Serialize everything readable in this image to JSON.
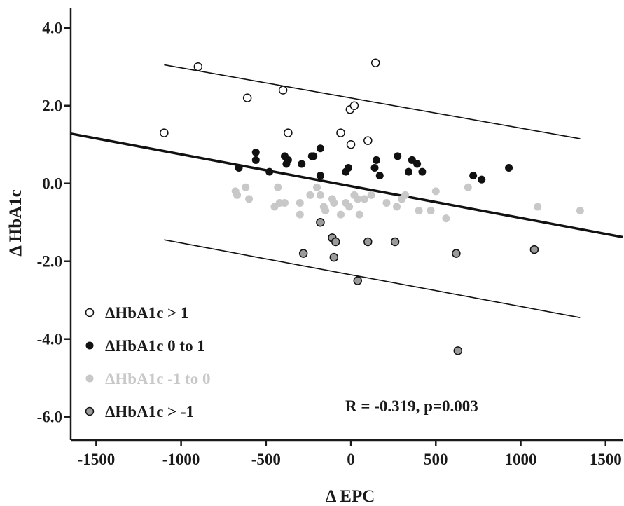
{
  "chart_data": {
    "type": "scatter",
    "xlabel": "Δ EPC",
    "ylabel": "Δ HbA1c",
    "xlim": [
      -1650,
      1600
    ],
    "ylim": [
      -6.6,
      4.5
    ],
    "x_ticks": [
      -1500,
      -1000,
      -500,
      0,
      500,
      1000,
      1500
    ],
    "x_tick_labels": [
      "-1500",
      "-1000",
      "-500",
      "0",
      "500",
      "1000",
      "1500"
    ],
    "y_ticks": [
      4.0,
      2.0,
      0.0,
      -2.0,
      -4.0,
      -6.0
    ],
    "y_tick_labels": [
      "4.0",
      "2.0",
      "0.0",
      "-2.0",
      "-4.0",
      "-6.0"
    ],
    "grid": false,
    "legend_position": "bottom-left",
    "annotation": "R = -0.319, p=0.003",
    "colors": {
      "axis": "#1a1a1a",
      "regression": "#111111",
      "interval": "#111111"
    },
    "series": [
      {
        "name": "ΔHbA1c > 1",
        "marker": "open-circle",
        "fill": "#ffffff",
        "stroke": "#111111",
        "text_color": "#1a1a1a",
        "points": [
          [
            -1100,
            1.3
          ],
          [
            -900,
            3.0
          ],
          [
            -610,
            2.2
          ],
          [
            -400,
            2.4
          ],
          [
            -370,
            1.3
          ],
          [
            -60,
            1.3
          ],
          [
            -5,
            1.9
          ],
          [
            0,
            1.0
          ],
          [
            20,
            2.0
          ],
          [
            100,
            1.1
          ],
          [
            145,
            3.1
          ]
        ]
      },
      {
        "name": "ΔHbA1c 0 to 1",
        "marker": "filled-circle",
        "fill": "#111111",
        "stroke": "#111111",
        "text_color": "#1a1a1a",
        "points": [
          [
            -660,
            0.4
          ],
          [
            -560,
            0.6
          ],
          [
            -560,
            0.8
          ],
          [
            -480,
            0.3
          ],
          [
            -390,
            0.7
          ],
          [
            -380,
            0.5
          ],
          [
            -370,
            0.6
          ],
          [
            -290,
            0.5
          ],
          [
            -230,
            0.7
          ],
          [
            -220,
            0.7
          ],
          [
            -180,
            0.9
          ],
          [
            -180,
            0.2
          ],
          [
            -30,
            0.3
          ],
          [
            -15,
            0.4
          ],
          [
            140,
            0.4
          ],
          [
            150,
            0.6
          ],
          [
            170,
            0.2
          ],
          [
            275,
            0.7
          ],
          [
            340,
            0.3
          ],
          [
            360,
            0.6
          ],
          [
            390,
            0.5
          ],
          [
            420,
            0.3
          ],
          [
            720,
            0.2
          ],
          [
            770,
            0.1
          ],
          [
            930,
            0.4
          ]
        ]
      },
      {
        "name": "ΔHbA1c -1 to 0",
        "marker": "filled-circle",
        "fill": "#c8c8c8",
        "stroke": "#c8c8c8",
        "text_color": "#c8c8c8",
        "points": [
          [
            -680,
            -0.2
          ],
          [
            -670,
            -0.3
          ],
          [
            -620,
            -0.1
          ],
          [
            -600,
            -0.4
          ],
          [
            -450,
            -0.6
          ],
          [
            -430,
            -0.1
          ],
          [
            -420,
            -0.5
          ],
          [
            -390,
            -0.5
          ],
          [
            -300,
            -0.5
          ],
          [
            -300,
            -0.8
          ],
          [
            -240,
            -0.3
          ],
          [
            -200,
            -0.1
          ],
          [
            -180,
            -0.3
          ],
          [
            -160,
            -0.6
          ],
          [
            -150,
            -0.7
          ],
          [
            -110,
            -0.4
          ],
          [
            -100,
            -0.5
          ],
          [
            -60,
            -0.8
          ],
          [
            -30,
            -0.5
          ],
          [
            -10,
            -0.6
          ],
          [
            20,
            -0.3
          ],
          [
            40,
            -0.4
          ],
          [
            50,
            -0.8
          ],
          [
            80,
            -0.4
          ],
          [
            120,
            -0.3
          ],
          [
            210,
            -0.5
          ],
          [
            270,
            -0.6
          ],
          [
            300,
            -0.4
          ],
          [
            320,
            -0.3
          ],
          [
            400,
            -0.7
          ],
          [
            470,
            -0.7
          ],
          [
            500,
            -0.2
          ],
          [
            560,
            -0.9
          ],
          [
            690,
            -0.1
          ],
          [
            1100,
            -0.6
          ],
          [
            1350,
            -0.7
          ]
        ]
      },
      {
        "name": "ΔHbA1c > -1",
        "marker": "filled-circle-outlined",
        "fill": "#9a9a9a",
        "stroke": "#111111",
        "text_color": "#1a1a1a",
        "points": [
          [
            -280,
            -1.8
          ],
          [
            -180,
            -1.0
          ],
          [
            -110,
            -1.4
          ],
          [
            -100,
            -1.9
          ],
          [
            -90,
            -1.5
          ],
          [
            40,
            -2.5
          ],
          [
            100,
            -1.5
          ],
          [
            260,
            -1.5
          ],
          [
            620,
            -1.8
          ],
          [
            630,
            -4.3
          ],
          [
            1080,
            -1.7
          ]
        ]
      }
    ],
    "regression_line": {
      "points": [
        [
          -1650,
          1.28
        ],
        [
          1600,
          -1.38
        ]
      ]
    },
    "prediction_bands": [
      {
        "points": [
          [
            -1100,
            3.05
          ],
          [
            1350,
            1.15
          ]
        ]
      },
      {
        "points": [
          [
            -1100,
            -1.45
          ],
          [
            1350,
            -3.45
          ]
        ]
      }
    ]
  }
}
